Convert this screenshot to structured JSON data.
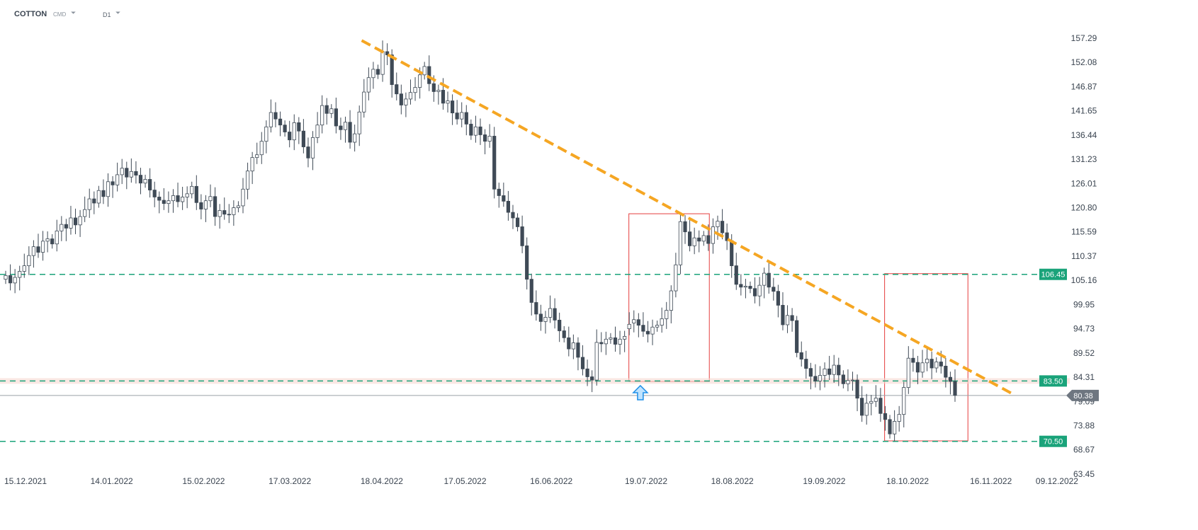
{
  "toolbar": {
    "symbol": "COTTON",
    "source": "CMD",
    "timeframe": "D1"
  },
  "chart_data": {
    "type": "candlestick",
    "y_ticks": [
      "157.29",
      "152.08",
      "146.87",
      "141.65",
      "136.44",
      "131.23",
      "126.01",
      "120.80",
      "115.59",
      "110.37",
      "105.16",
      "99.95",
      "94.73",
      "89.52",
      "84.31",
      "79.09",
      "73.88",
      "68.67",
      "63.45"
    ],
    "x_ticks": [
      "15.12.2021",
      "14.01.2022",
      "15.02.2022",
      "17.03.2022",
      "18.04.2022",
      "17.05.2022",
      "16.06.2022",
      "19.07.2022",
      "18.08.2022",
      "19.09.2022",
      "18.10.2022",
      "16.11.2022",
      "09.12.2022"
    ],
    "ylim": [
      63.45,
      157.29
    ],
    "current_price": {
      "label": "80.38",
      "value": 80.38
    },
    "levels": [
      {
        "label": "106.45",
        "value": 106.45
      },
      {
        "label": "83.50",
        "value": 83.5
      },
      {
        "label": "70.50",
        "value": 70.5
      }
    ],
    "trendline": {
      "start": {
        "date": "11.04.2022",
        "value": 156.8
      },
      "end": {
        "date": "23.11.2022",
        "value": 80.9
      }
    },
    "boxes": [
      {
        "from": "13.07.2022",
        "to": "10.08.2022",
        "low": 83.4,
        "high": 119.5
      },
      {
        "from": "10.10.2022",
        "to": "08.11.2022",
        "low": 70.6,
        "high": 106.6
      }
    ],
    "arrow": {
      "date": "17.07.2022",
      "value": 82.5,
      "direction": "up"
    },
    "series_close": [
      [
        106.2,
        104.6,
        105.8,
        107.1,
        108.3,
        110.5,
        112.4,
        111.2,
        113.6,
        114.1,
        113.0,
        115.8,
        117.2,
        116.4,
        118.6,
        117.1,
        118.9,
        120.4,
        122.7,
        121.8,
        124.5,
        123.2,
        126.4,
        125.7,
        127.9,
        129.3,
        127.4,
        128.6,
        127.8,
        126.1
      ],
      [
        126.9,
        124.6,
        123.1,
        122.4,
        121.7,
        122.3,
        123.4,
        122.1,
        123.1,
        123.8,
        125.4,
        121.9,
        120.5,
        122.3,
        123.2,
        118.9,
        120.2,
        119.4,
        119.3,
        120.8,
        121.2,
        124.8,
        128.7,
        131.6,
        132.2,
        135.1,
        138.2,
        141.3,
        139.9,
        138.6
      ],
      [
        137.1,
        135.4,
        139.1,
        137.3,
        133.9,
        131.5,
        135.9,
        138.6,
        142.8,
        141.1,
        142.1,
        138.4,
        137.6,
        139.2,
        134.9,
        136.7,
        141.4,
        145.7,
        148.8,
        150.6,
        149.5,
        154.4,
        153.7,
        147.3,
        145.3,
        142.9,
        144.2,
        145.6,
        146.7,
        149.4
      ],
      [
        151.2,
        147.5,
        145.8,
        146.1,
        143.3,
        143.8,
        141.2,
        139.9,
        141.3,
        138.8,
        136.4,
        138.2,
        136.5,
        135.1,
        136.2,
        124.8,
        123.4,
        122.2,
        119.8,
        118.6,
        116.7,
        112.6,
        105.4,
        100.4,
        97.9,
        96.3,
        97.2,
        99.1,
        96.6,
        94.3
      ],
      [
        92.8,
        90.4,
        91.7,
        88.6,
        86.1,
        84.4,
        83.7,
        91.8,
        91.5,
        92.5,
        92.8,
        91.4,
        92.5,
        93.1,
        95.7,
        96.7,
        95.5,
        94.2,
        93.6,
        95.1,
        95.5,
        96.9,
        98.7,
        102.9,
        108.5,
        117.8,
        115.6,
        112.6,
        114.3,
        113.6
      ],
      [
        114.8,
        113.1,
        116.7,
        117.9,
        115.4,
        113.7,
        108.3,
        104.3,
        103.7,
        103.9,
        103.4,
        101.8,
        104.1,
        106.7,
        103.7,
        102.8,
        99.8,
        95.6,
        97.6,
        96.5,
        89.6,
        88.2,
        86.2,
        84.5,
        83.5,
        84.7,
        86.1,
        84.9,
        86.9,
        84.8
      ],
      [
        82.9,
        83.6,
        83.7,
        79.8,
        76.1,
        78.7,
        79.1,
        79.8,
        76.5,
        75.2,
        72.1,
        74.8,
        76.3,
        82.1,
        88.4,
        87.5,
        85.4,
        87.4,
        88.2,
        86.3,
        87.6,
        86.7,
        84.3,
        83.4,
        80.4
      ]
    ]
  }
}
